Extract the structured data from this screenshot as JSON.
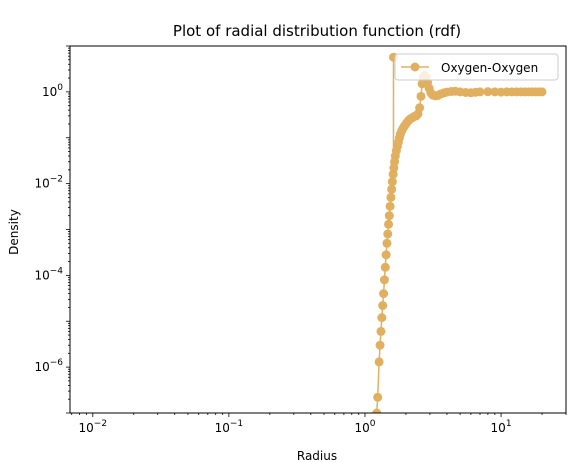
{
  "chart_data": {
    "type": "line",
    "title": "Plot of radial distribution function (rdf)",
    "xlabel": "Radius",
    "ylabel": "Density",
    "xscale": "log",
    "yscale": "log",
    "xlim": [
      0.0068,
      30
    ],
    "ylim": [
      1e-07,
      10
    ],
    "x_ticks": [
      {
        "value": 0.01,
        "base": "10",
        "exp": "−2"
      },
      {
        "value": 0.1,
        "base": "10",
        "exp": "−1"
      },
      {
        "value": 1,
        "base": "10",
        "exp": "0"
      },
      {
        "value": 10,
        "base": "10",
        "exp": "1"
      }
    ],
    "y_ticks": [
      {
        "value": 1e-06,
        "base": "10",
        "exp": "−6"
      },
      {
        "value": 0.0001,
        "base": "10",
        "exp": "−4"
      },
      {
        "value": 0.01,
        "base": "10",
        "exp": "−2"
      },
      {
        "value": 1,
        "base": "10",
        "exp": "0"
      }
    ],
    "grid": false,
    "legend_position": "top-right",
    "series": [
      {
        "name": "Oxygen-Oxygen",
        "color": "#e0b060",
        "marker": "circle",
        "points": [
          [
            1.22,
            1e-07
          ],
          [
            1.24,
            2.2e-07
          ],
          [
            1.27,
            1.3e-06
          ],
          [
            1.29,
            3e-06
          ],
          [
            1.31,
            6e-06
          ],
          [
            1.33,
            1.2e-05
          ],
          [
            1.35,
            2.2e-05
          ],
          [
            1.37,
            4e-05
          ],
          [
            1.39,
            8e-05
          ],
          [
            1.41,
            0.00015
          ],
          [
            1.43,
            0.00028
          ],
          [
            1.45,
            0.0005
          ],
          [
            1.47,
            0.0008
          ],
          [
            1.49,
            0.0013
          ],
          [
            1.51,
            0.002
          ],
          [
            1.53,
            0.0032
          ],
          [
            1.55,
            0.005
          ],
          [
            1.57,
            0.0075
          ],
          [
            1.59,
            0.011
          ],
          [
            1.61,
            0.016
          ],
          [
            1.63,
            0.022
          ],
          [
            1.65,
            0.03
          ],
          [
            1.67,
            0.04
          ],
          [
            1.7,
            0.052
          ],
          [
            1.73,
            0.065
          ],
          [
            1.76,
            0.08
          ],
          [
            1.79,
            0.1
          ],
          [
            1.82,
            0.12
          ],
          [
            1.86,
            0.14
          ],
          [
            1.9,
            0.16
          ],
          [
            1.95,
            0.18
          ],
          [
            2.0,
            0.2
          ],
          [
            2.05,
            0.22
          ],
          [
            2.1,
            0.24
          ],
          [
            2.16,
            0.26
          ],
          [
            2.22,
            0.27
          ],
          [
            2.3,
            0.29
          ],
          [
            2.38,
            0.3
          ],
          [
            2.45,
            0.33
          ],
          [
            2.52,
            0.45
          ],
          [
            2.58,
            0.8
          ],
          [
            2.63,
            1.5
          ],
          [
            2.68,
            2.1
          ],
          [
            2.74,
            2.3
          ],
          [
            2.8,
            2.1
          ],
          [
            2.88,
            1.6
          ],
          [
            2.96,
            1.2
          ],
          [
            3.05,
            0.95
          ],
          [
            3.15,
            0.85
          ],
          [
            3.3,
            0.82
          ],
          [
            3.45,
            0.84
          ],
          [
            3.6,
            0.9
          ],
          [
            3.8,
            0.95
          ],
          [
            4.0,
            0.99
          ],
          [
            4.3,
            1.02
          ],
          [
            4.6,
            1.03
          ],
          [
            5.0,
            1.0
          ],
          [
            5.5,
            0.97
          ],
          [
            6.0,
            0.96
          ],
          [
            6.5,
            0.98
          ],
          [
            7.0,
            1.0
          ],
          [
            8.0,
            1.01
          ],
          [
            9.0,
            1.0
          ],
          [
            10.0,
            0.99
          ],
          [
            11.0,
            1.0
          ],
          [
            12.0,
            1.0
          ],
          [
            13.0,
            1.0
          ],
          [
            14.0,
            1.0
          ],
          [
            15.0,
            1.0
          ],
          [
            16.0,
            1.0
          ],
          [
            17.0,
            1.0
          ],
          [
            18.0,
            1.0
          ],
          [
            19.0,
            1.0
          ],
          [
            20.0,
            1.0
          ]
        ],
        "spike": {
          "x": 1.62,
          "y": 5.7
        }
      }
    ]
  }
}
